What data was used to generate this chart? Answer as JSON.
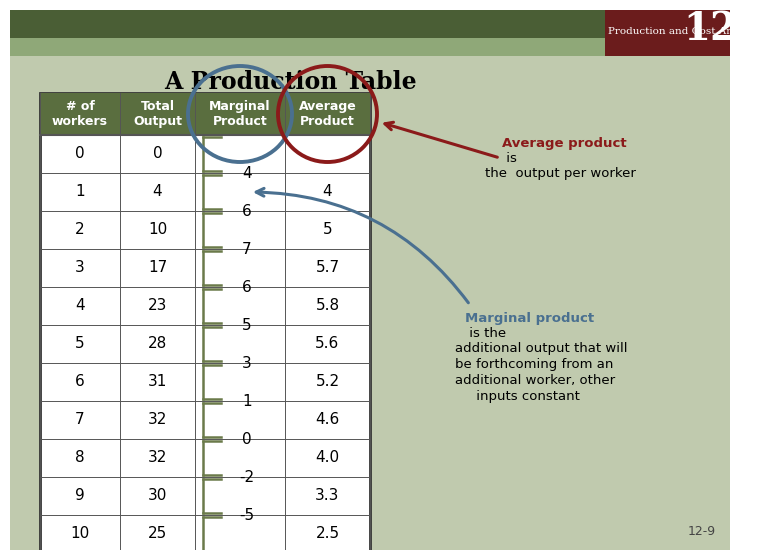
{
  "title": "A Production Table",
  "header_title": "Production and Cost Analysis I",
  "header_number": "12",
  "slide_number": "12-9",
  "bg_color": "#b8c4a8",
  "bg_color2": "#c8cfc0",
  "header_dark_green": "#4a5e35",
  "header_light_green": "#8fa878",
  "header_right_color": "#6b1c1c",
  "table_header_color": "#5a6e3f",
  "workers": [
    0,
    1,
    2,
    3,
    4,
    5,
    6,
    7,
    8,
    9,
    10
  ],
  "total_output": [
    0,
    4,
    10,
    17,
    23,
    28,
    31,
    32,
    32,
    30,
    25
  ],
  "marginal_product": [
    "",
    4,
    6,
    7,
    6,
    5,
    3,
    1,
    0,
    -2,
    -5
  ],
  "average_product": [
    "",
    4,
    5,
    "5.7",
    "5.8",
    "5.6",
    "5.2",
    "4.6",
    "4.0",
    "3.3",
    "2.5"
  ],
  "avg_product_color": "#8b1a1a",
  "marginal_product_color": "#4a7090",
  "bracket_color": "#6b7a4a"
}
